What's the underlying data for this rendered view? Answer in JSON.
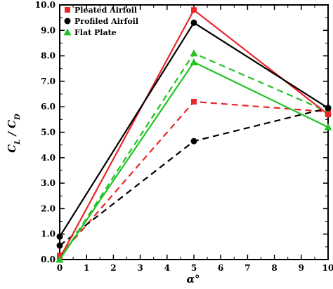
{
  "chart_data": {
    "type": "line",
    "xlabel": "α°",
    "ylabel": "C_L / C_D",
    "xlim": [
      0,
      10
    ],
    "ylim": [
      0,
      10
    ],
    "x_ticks": [
      0,
      1,
      2,
      3,
      4,
      5,
      6,
      7,
      8,
      9,
      10
    ],
    "y_ticks": [
      0,
      1,
      2,
      3,
      4,
      5,
      6,
      7,
      8,
      9,
      10
    ],
    "y_tick_labels": [
      "0.0",
      "1.0",
      "2.0",
      "3.0",
      "4.0",
      "5.0",
      "6.0",
      "7.0",
      "8.0",
      "9.0",
      "10.0"
    ],
    "grid": false,
    "legend_position": "top-left",
    "series": [
      {
        "name": "Pleated Airfoil",
        "color": "#e8262b",
        "marker": "square",
        "line_style": "solid",
        "x": [
          0,
          5,
          10
        ],
        "y": [
          0.05,
          9.8,
          5.7
        ]
      },
      {
        "name": "Profiled Airfoil",
        "color": "#000000",
        "marker": "circle",
        "line_style": "solid",
        "x": [
          0,
          5,
          10
        ],
        "y": [
          0.9,
          9.3,
          5.95
        ]
      },
      {
        "name": "Flat Plate",
        "color": "#22c322",
        "marker": "triangle",
        "line_style": "solid",
        "x": [
          0,
          5,
          10
        ],
        "y": [
          0.0,
          7.75,
          5.2
        ]
      },
      {
        "name": "",
        "color": "#e8262b",
        "marker": "square",
        "line_style": "dashed",
        "x": [
          0,
          5,
          10
        ],
        "y": [
          0.15,
          6.2,
          5.8
        ]
      },
      {
        "name": "",
        "color": "#000000",
        "marker": "circle",
        "line_style": "dashed",
        "x": [
          0,
          5,
          10
        ],
        "y": [
          0.55,
          4.65,
          5.95
        ]
      },
      {
        "name": "",
        "color": "#22c322",
        "marker": "triangle",
        "line_style": "dashed",
        "x": [
          0,
          5,
          10
        ],
        "y": [
          0.0,
          8.1,
          5.8
        ]
      }
    ]
  }
}
